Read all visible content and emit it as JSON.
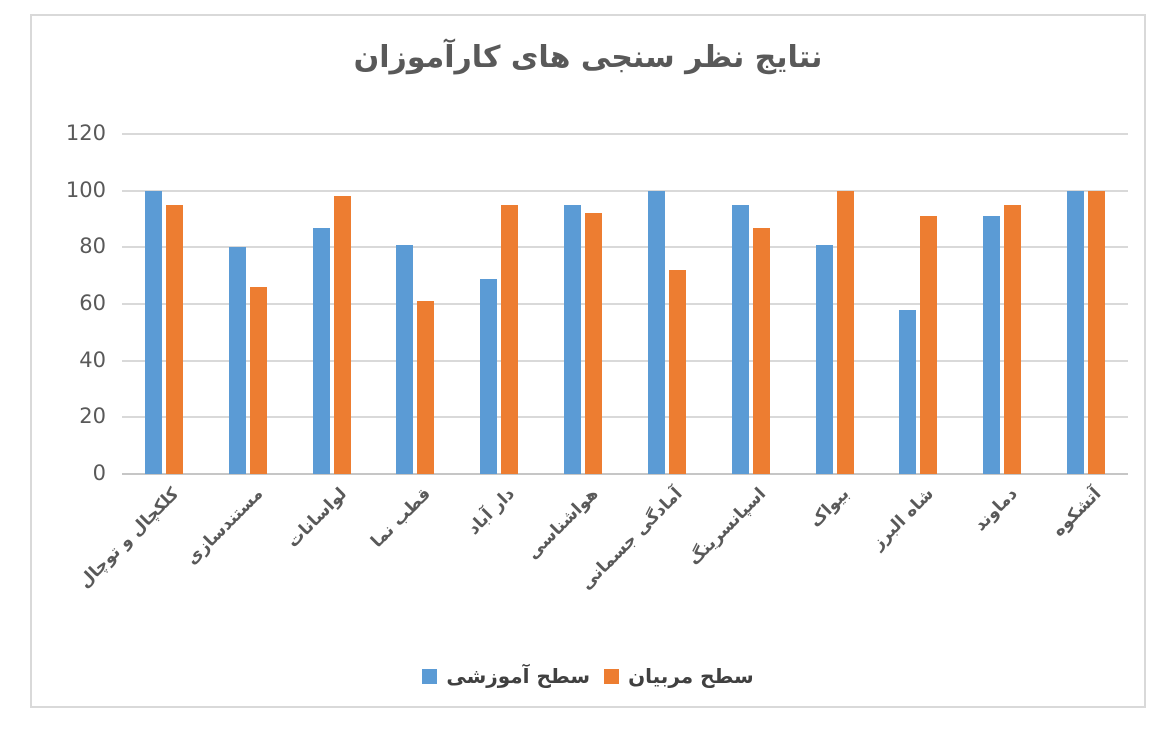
{
  "chart_data": {
    "type": "bar",
    "title": "نتایج نظر سنجی های کارآموزان",
    "rtl": true,
    "categories": [
      "کلکچال و توچال",
      "مستندسازی",
      "لواسانات",
      "قطب نما",
      "دار آباد",
      "هواشناسی",
      "آمادگی جسمانی",
      "اسپانسرینگ",
      "بیواک",
      "شاه البرز",
      "دماوند",
      "آتشکوه"
    ],
    "series": [
      {
        "name": "سطح آموزشی",
        "color": "#5B9BD5",
        "values": [
          100,
          80,
          87,
          81,
          69,
          95,
          100,
          95,
          81,
          58,
          91,
          100
        ]
      },
      {
        "name": "سطح مربیان",
        "color": "#ED7D31",
        "values": [
          95,
          66,
          98,
          61,
          95,
          92,
          72,
          87,
          100,
          91,
          95,
          100
        ]
      }
    ],
    "xlabel": "",
    "ylabel": "",
    "ylim": [
      0,
      120
    ],
    "yticks": [
      0,
      20,
      40,
      60,
      80,
      100,
      120
    ],
    "grid": "horizontal",
    "legend_position": "bottom"
  },
  "style": {
    "gridline_color": "#D9D9D9",
    "axis_line_color": "#C6C6C6",
    "title_color": "#595959",
    "tick_label_color": "#595959",
    "category_label_color": "#595959",
    "legend_label_color": "#404040",
    "frame_border_color": "#D9D9D9",
    "background_color": "#FFFFFF"
  }
}
